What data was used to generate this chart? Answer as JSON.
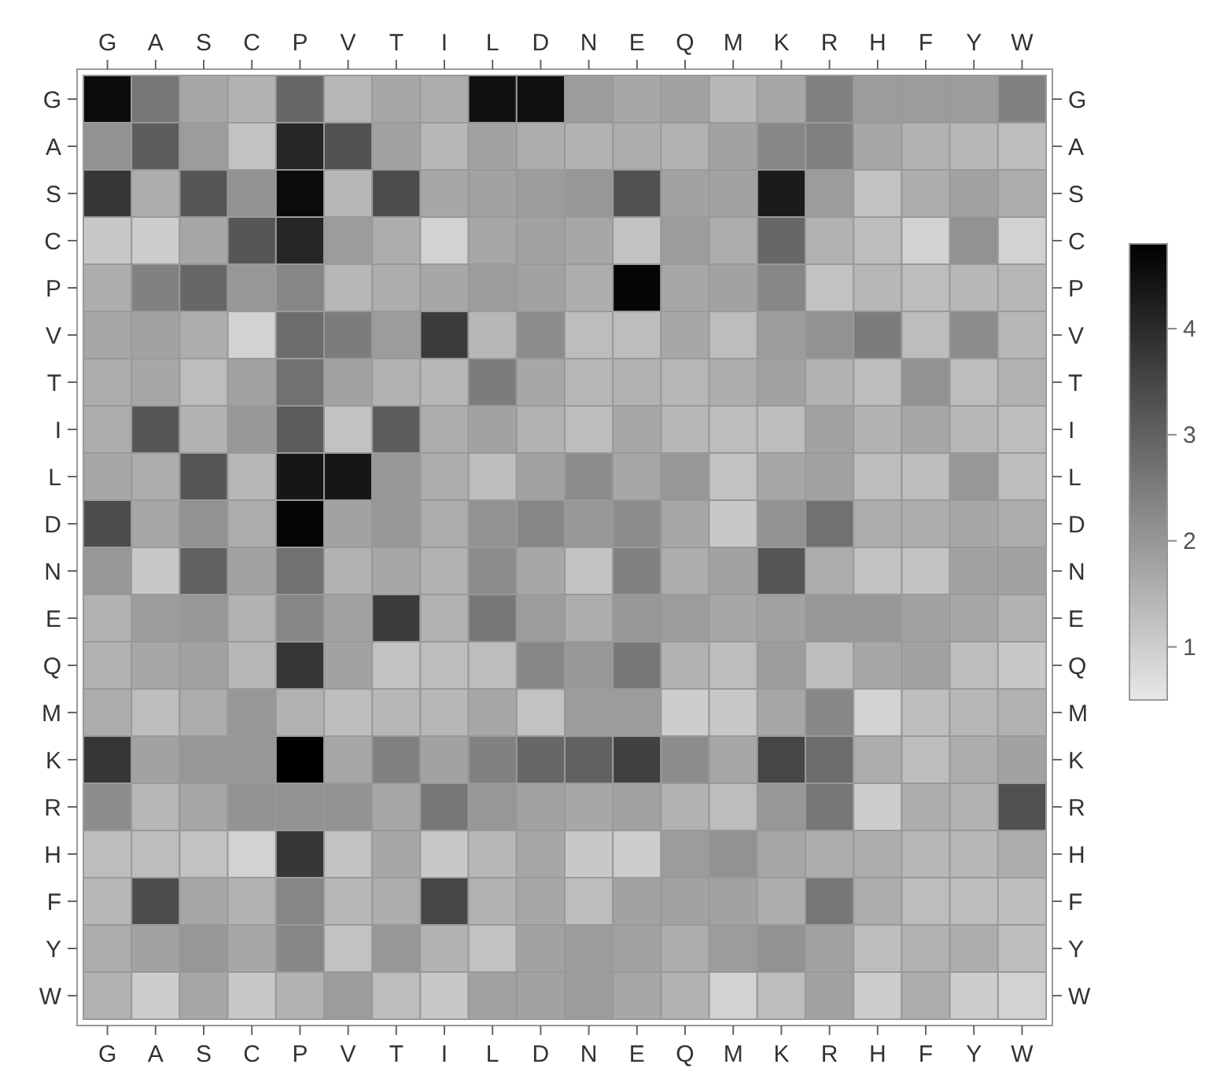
{
  "chart_data": {
    "type": "heatmap",
    "categories": [
      "G",
      "A",
      "S",
      "C",
      "P",
      "V",
      "T",
      "I",
      "L",
      "D",
      "N",
      "E",
      "Q",
      "M",
      "K",
      "R",
      "H",
      "F",
      "Y",
      "W"
    ],
    "y_categories": [
      "G",
      "A",
      "S",
      "C",
      "P",
      "V",
      "T",
      "I",
      "L",
      "D",
      "N",
      "E",
      "Q",
      "M",
      "K",
      "R",
      "H",
      "F",
      "Y",
      "W"
    ],
    "y2_categories": [
      "G",
      "A",
      "S",
      "C",
      "P",
      "V",
      "T",
      "I",
      "L",
      "D",
      "N",
      "E",
      "Q",
      "M",
      "K",
      "R",
      "H",
      "F",
      "Y",
      "W"
    ],
    "cells": [
      [
        4.6,
        2.6,
        1.7,
        1.5,
        2.9,
        1.4,
        1.7,
        1.6,
        4.5,
        4.5,
        1.9,
        1.7,
        1.8,
        1.4,
        1.7,
        2.4,
        1.9,
        1.9,
        1.9,
        2.4
      ],
      [
        2.1,
        3.1,
        1.9,
        1.2,
        4.1,
        3.3,
        1.8,
        1.4,
        1.8,
        1.6,
        1.5,
        1.6,
        1.5,
        1.8,
        2.3,
        2.4,
        1.7,
        1.5,
        1.4,
        1.3
      ],
      [
        3.8,
        1.6,
        3.2,
        2.1,
        4.6,
        1.4,
        3.4,
        1.7,
        1.8,
        1.9,
        2.0,
        3.3,
        1.8,
        1.8,
        4.3,
        1.9,
        1.2,
        1.6,
        1.8,
        1.6
      ],
      [
        1.1,
        1.0,
        1.7,
        3.2,
        4.1,
        1.9,
        1.6,
        0.9,
        1.7,
        1.8,
        1.7,
        1.2,
        1.9,
        1.6,
        2.9,
        1.5,
        1.3,
        0.9,
        2.1,
        0.9
      ],
      [
        1.6,
        2.4,
        2.9,
        2.0,
        2.3,
        1.4,
        1.6,
        1.7,
        1.9,
        1.8,
        1.6,
        4.7,
        1.7,
        1.8,
        2.3,
        1.2,
        1.4,
        1.3,
        1.4,
        1.4
      ],
      [
        1.7,
        1.8,
        1.6,
        0.9,
        2.8,
        2.5,
        1.9,
        3.7,
        1.4,
        2.2,
        1.3,
        1.3,
        1.7,
        1.3,
        1.9,
        2.1,
        2.5,
        1.3,
        2.2,
        1.4
      ],
      [
        1.6,
        1.7,
        1.3,
        1.8,
        2.7,
        1.8,
        1.5,
        1.4,
        2.5,
        1.7,
        1.4,
        1.5,
        1.4,
        1.6,
        1.8,
        1.5,
        1.3,
        2.1,
        1.3,
        1.5
      ],
      [
        1.6,
        3.2,
        1.5,
        2.0,
        3.1,
        1.2,
        3.1,
        1.6,
        1.8,
        1.5,
        1.3,
        1.7,
        1.4,
        1.3,
        1.3,
        1.8,
        1.5,
        1.7,
        1.4,
        1.3
      ],
      [
        1.7,
        1.6,
        3.2,
        1.4,
        4.4,
        4.4,
        2.0,
        1.6,
        1.3,
        1.8,
        2.2,
        1.7,
        2.0,
        1.2,
        1.7,
        1.8,
        1.3,
        1.3,
        2.0,
        1.3
      ],
      [
        3.4,
        1.7,
        2.1,
        1.6,
        4.7,
        1.8,
        2.0,
        1.6,
        2.1,
        2.3,
        2.0,
        2.2,
        1.7,
        1.1,
        2.1,
        2.7,
        1.6,
        1.6,
        1.7,
        1.6
      ],
      [
        2.0,
        1.1,
        3.0,
        1.8,
        2.7,
        1.5,
        1.7,
        1.5,
        2.2,
        1.7,
        1.2,
        2.4,
        1.6,
        1.8,
        3.2,
        1.6,
        1.2,
        1.2,
        1.8,
        1.8
      ],
      [
        1.5,
        1.9,
        2.0,
        1.5,
        2.3,
        1.8,
        3.7,
        1.5,
        2.6,
        1.9,
        1.6,
        2.0,
        1.9,
        1.7,
        1.8,
        2.0,
        2.0,
        1.8,
        1.7,
        1.5
      ],
      [
        1.5,
        1.7,
        1.8,
        1.4,
        3.8,
        1.8,
        1.2,
        1.3,
        1.3,
        2.3,
        2.0,
        2.6,
        1.5,
        1.3,
        1.9,
        1.3,
        1.7,
        1.8,
        1.3,
        1.1
      ],
      [
        1.6,
        1.3,
        1.6,
        2.0,
        1.5,
        1.3,
        1.4,
        1.4,
        1.7,
        1.2,
        1.9,
        1.9,
        1.0,
        1.1,
        1.7,
        2.3,
        0.9,
        1.3,
        1.4,
        1.5
      ],
      [
        3.8,
        1.8,
        2.0,
        2.0,
        4.8,
        1.7,
        2.4,
        1.8,
        2.4,
        2.9,
        3.0,
        3.6,
        2.2,
        1.7,
        3.5,
        2.8,
        1.6,
        1.3,
        1.6,
        1.8
      ],
      [
        2.2,
        1.4,
        1.7,
        2.1,
        2.1,
        2.1,
        1.7,
        2.6,
        2.0,
        1.8,
        1.7,
        1.8,
        1.5,
        1.3,
        2.0,
        2.6,
        1.0,
        1.6,
        1.5,
        3.3
      ],
      [
        1.3,
        1.3,
        1.2,
        0.9,
        3.8,
        1.2,
        1.7,
        1.1,
        1.4,
        1.7,
        1.1,
        1.0,
        1.9,
        2.1,
        1.7,
        1.6,
        1.6,
        1.4,
        1.4,
        1.6
      ],
      [
        1.4,
        3.4,
        1.7,
        1.5,
        2.3,
        1.4,
        1.6,
        3.5,
        1.5,
        1.7,
        1.3,
        1.8,
        1.8,
        1.8,
        1.6,
        2.6,
        1.6,
        1.3,
        1.3,
        1.3
      ],
      [
        1.6,
        1.8,
        2.0,
        1.7,
        2.3,
        1.2,
        2.0,
        1.5,
        1.2,
        1.8,
        1.9,
        1.8,
        1.6,
        1.9,
        2.1,
        1.8,
        1.3,
        1.5,
        1.6,
        1.3
      ],
      [
        1.5,
        1.0,
        1.7,
        1.1,
        1.5,
        1.9,
        1.3,
        1.1,
        1.8,
        1.8,
        1.9,
        1.7,
        1.5,
        0.9,
        1.3,
        1.8,
        1.0,
        1.6,
        1.0,
        0.9
      ]
    ],
    "clim": [
      0.5,
      4.8
    ],
    "cticks": [
      1,
      2,
      3,
      4
    ]
  }
}
